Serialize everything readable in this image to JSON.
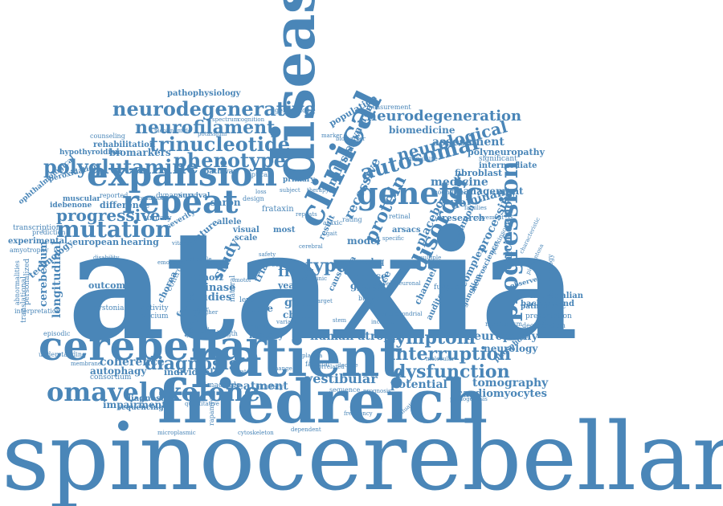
{
  "words": {
    "spinocerebellar": "spinocerebellar",
    "ataxia": "ataxia",
    "friedreich": "friedreich",
    "patient": "patient",
    "disease": "disease",
    "clinical": "clinical",
    "cerebellar": "cerebellar",
    "expansion": "expansion",
    "repeat": "repeat",
    "genetic": "genetic",
    "omaveloxolone": "omaveloxolone",
    "mutation": "mutation",
    "polyglutamine": "polyglutamine",
    "neurodegenerative": "neurodegenerative",
    "neurofilament": "neurofilament",
    "trinucleotide": "trinucleotide",
    "phenotype": "phenotype",
    "progressive": "progressive",
    "autosomal": "autosomal",
    "neurological": "neurological",
    "neurodegeneration": "neurodegeneration",
    "progression": "progression",
    "symptom": "symptom",
    "interruption": "interruption",
    "dysfunction": "dysfunction",
    "disorder": "disorder",
    "diagnosis": "diagnosis",
    "protein": "protein",
    "type": "type",
    "treatment": "treatment",
    "vestibular": "vestibular",
    "recessive": "recessive",
    "analysis": "analysis",
    "assessment": "assessment",
    "biomedicine": "biomedicine",
    "medicine": "medicine",
    "management": "management",
    "dominant": "dominant",
    "processing": "processing",
    "calcification": "calcification",
    "tomography": "tomography",
    "cardiomyocytes": "cardiomyocytes",
    "neuropathy": "neuropathy",
    "neurology": "neurology",
    "potential": "potential",
    "human_atrophy": "human atrophy",
    "frda": "frda",
    "frataxin": "frataxin",
    "kinase": "kinase",
    "coherence": "coherence",
    "autophagy": "autophagy",
    "impairment": "impairment",
    "biomarkers": "biomarkers",
    "pathophysiology": "pathophysiology",
    "polyneuropathy": "polyneuropathy",
    "fibroblast": "fibroblast",
    "intermediate": "intermediate",
    "significant": "significant",
    "rehabilitation": "rehabilitation",
    "hypothyroidism": "hypothyroidism",
    "peroxidation": "peroxidation",
    "ophthalmological": "ophthalmological",
    "difference": "difference",
    "european": "european",
    "experimental": "experimental",
    "transcription": "transcription",
    "longitudinal": "longitudinal",
    "cerebellum": "cerebellum",
    "technology": "technology",
    "study": "study",
    "mouse": "mouse",
    "group": "group",
    "model": "model",
    "placebo": "placebo",
    "research": "research",
    "common": "common",
    "channel": "channel",
    "complex": "complex",
    "mammalian": "mammalian",
    "background": "background",
    "pathogenic": "pathogenic",
    "presentation": "presentation",
    "degeneration": "degeneration",
    "phosphorylation": "phosphorylation",
    "diagnostic": "diagnostic",
    "sequencing": "sequencing",
    "individual": "individual",
    "consortium": "consortium",
    "dystonia": "dystonia",
    "outcome": "outcome",
    "studies": "studies",
    "cohort": "cohort",
    "history": "history",
    "gene": "gene",
    "score": "score",
    "chain": "chain",
    "science": "science",
    "syndrome": "syndrome",
    "population": "population",
    "generation": "generation",
    "measurement": "measurement",
    "family": "family",
    "saron": "saron",
    "hearing": "hearing",
    "feature": "feature",
    "visual": "visual",
    "scale": "scale",
    "allele": "allele",
    "severity": "severity",
    "survival": "survival",
    "dynamic": "dynamic",
    "reported": "reported",
    "urinary": "urinary",
    "muscular": "muscular",
    "idebenone": "idebenone",
    "prediction": "prediction",
    "amyotrophy": "amyotrophy",
    "episodic": "episodic",
    "understanding": "understanding",
    "interpretation": "interpretation",
    "translational": "translational",
    "personalized": "personalized",
    "abnormalities": "abnormalities",
    "activity": "activity",
    "calcium": "calcium",
    "factor": "factor",
    "chorea": "chorea",
    "control": "control",
    "natural": "natural",
    "level": "level",
    "trial": "trial",
    "mechanism": "mechanism",
    "pharmacology": "pharmacology",
    "function": "function",
    "auditory": "auditory",
    "ganglion": "ganglion",
    "machado": "machado",
    "pituitary": "pituitary",
    "cytoskeleton": "cytoskeleton",
    "dependent": "dependent",
    "sequence": "sequence",
    "prognosis": "prognosis",
    "evaluation": "evaluation",
    "pathogenesis": "pathogenesis",
    "frequency": "frequency",
    "familial": "familial",
    "oxidative": "oxidative",
    "cognitive": "cognitive",
    "primary": "primary",
    "optical": "optical",
    "design": "design",
    "most": "most",
    "cause": "cause",
    "result": "result",
    "ataxic": "ataxic",
    "novel": "novel",
    "bowel": "bowel",
    "brain": "brain",
    "retinal": "retinal",
    "rating": "rating",
    "method": "method",
    "movement": "movement",
    "parkinsonism": "parkinsonism",
    "families": "families",
    "characteristic": "characteristic",
    "cell": "cell",
    "data": "data",
    "polyq": "polyq",
    "year": "year",
    "counseling": "counseling",
    "nicotinamide": "nicotinamide",
    "potassium": "potassium",
    "spectrum": "spectrum",
    "cognition": "cognition",
    "pathway": "pathway",
    "multiple": "multiple",
    "measure": "measure",
    "length": "length",
    "synaptic": "synaptic",
    "related": "related",
    "neuroscience": "neuroscience",
    "observed": "observed",
    "pigmentosa": "pigmentosa",
    "increase": "increase",
    "molecular": "molecular",
    "rapamycin": "rapamycin",
    "microplasmic": "microplasmic",
    "specific": "specific",
    "variant": "variant",
    "chronic": "chronic",
    "nerve": "nerve",
    "safety": "safety",
    "emotional": "emotional",
    "clinic": "clinic",
    "condition": "condition",
    "disability": "disability",
    "vitamin": "vitamin",
    "loss": "loss",
    "repeats": "repeats",
    "mitochondrial": "mitochondrial",
    "stem": "stem",
    "plasma": "plasma",
    "decline": "decline",
    "correlated": "correlated",
    "membrane": "membrane",
    "strategy": "strategy",
    "change": "change",
    "gait": "gait",
    "arsacs": "arsacs",
    "therapy": "therapy",
    "biomarker": "biomarker",
    "quantitative": "quantitative",
    "motor": "motor",
    "schedule": "schedule",
    "subject": "subject",
    "cerebral": "cerebral",
    "rare": "rare",
    "target": "target",
    "lower": "lower",
    "higher": "higher",
    "neuronal": "neuronal",
    "marker": "marker"
  }
}
